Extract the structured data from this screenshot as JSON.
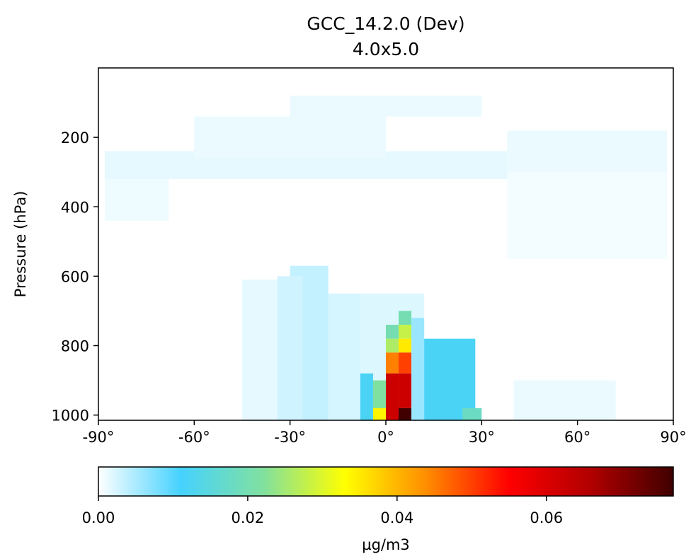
{
  "chart_data": {
    "type": "heatmap",
    "title": "GCC_14.2.0 (Dev)",
    "subtitle": "4.0x5.0",
    "xlabel": "",
    "ylabel": "Pressure (hPa)",
    "xlim": [
      -90,
      90
    ],
    "ylim": [
      1015,
      0
    ],
    "x_ticks": [
      "-90°",
      "-60°",
      "-30°",
      "0°",
      "30°",
      "60°",
      "90°"
    ],
    "x_tick_values": [
      -90,
      -60,
      -30,
      0,
      30,
      60,
      90
    ],
    "y_ticks": [
      "200",
      "400",
      "600",
      "800",
      "1000"
    ],
    "y_tick_values": [
      200,
      400,
      600,
      800,
      1000
    ],
    "colorbar": {
      "label": "µg/m3",
      "range": [
        0,
        0.077
      ],
      "ticks": [
        "0.00",
        "0.02",
        "0.04",
        "0.06"
      ],
      "tick_values": [
        0,
        0.02,
        0.04,
        0.06
      ],
      "colormap": [
        "#ffffff",
        "#46d2ff",
        "#80e0a0",
        "#ffff00",
        "#ff8c00",
        "#ff0000",
        "#b00000",
        "#400000"
      ]
    },
    "grid": false,
    "cells": [
      {
        "lat": [
          -88,
          40
        ],
        "p": [
          240,
          320
        ],
        "v": 0.0015
      },
      {
        "lat": [
          -88,
          -68
        ],
        "p": [
          320,
          440
        ],
        "v": 0.001
      },
      {
        "lat": [
          -60,
          0
        ],
        "p": [
          140,
          260
        ],
        "v": 0.0012
      },
      {
        "lat": [
          -30,
          30
        ],
        "p": [
          80,
          140
        ],
        "v": 0.0012
      },
      {
        "lat": [
          38,
          88
        ],
        "p": [
          180,
          300
        ],
        "v": 0.0012
      },
      {
        "lat": [
          38,
          88
        ],
        "p": [
          300,
          550
        ],
        "v": 0.0007
      },
      {
        "lat": [
          -45,
          -26
        ],
        "p": [
          610,
          1015
        ],
        "v": 0.0015
      },
      {
        "lat": [
          -30,
          -18
        ],
        "p": [
          570,
          1015
        ],
        "v": 0.0035
      },
      {
        "lat": [
          -34,
          -26
        ],
        "p": [
          600,
          1015
        ],
        "v": 0.0028
      },
      {
        "lat": [
          -18,
          -4
        ],
        "p": [
          650,
          1015
        ],
        "v": 0.0025
      },
      {
        "lat": [
          -8,
          12
        ],
        "p": [
          650,
          1015
        ],
        "v": 0.002
      },
      {
        "lat": [
          -8,
          -4
        ],
        "p": [
          880,
          1015
        ],
        "v": 0.012
      },
      {
        "lat": [
          -4,
          0
        ],
        "p": [
          900,
          1015
        ],
        "v": 0.022
      },
      {
        "lat": [
          -4,
          0
        ],
        "p": [
          980,
          1015
        ],
        "v": 0.034
      },
      {
        "lat": [
          0,
          4
        ],
        "p": [
          740,
          780
        ],
        "v": 0.02
      },
      {
        "lat": [
          0,
          4
        ],
        "p": [
          780,
          820
        ],
        "v": 0.026
      },
      {
        "lat": [
          0,
          4
        ],
        "p": [
          820,
          880
        ],
        "v": 0.045
      },
      {
        "lat": [
          0,
          4
        ],
        "p": [
          880,
          1015
        ],
        "v": 0.062
      },
      {
        "lat": [
          4,
          8
        ],
        "p": [
          700,
          740
        ],
        "v": 0.02
      },
      {
        "lat": [
          4,
          8
        ],
        "p": [
          740,
          780
        ],
        "v": 0.028
      },
      {
        "lat": [
          4,
          8
        ],
        "p": [
          780,
          820
        ],
        "v": 0.035
      },
      {
        "lat": [
          4,
          8
        ],
        "p": [
          820,
          880
        ],
        "v": 0.05
      },
      {
        "lat": [
          4,
          8
        ],
        "p": [
          880,
          980
        ],
        "v": 0.062
      },
      {
        "lat": [
          4,
          8
        ],
        "p": [
          980,
          1015
        ],
        "v": 0.077
      },
      {
        "lat": [
          8,
          12
        ],
        "p": [
          720,
          1015
        ],
        "v": 0.006
      },
      {
        "lat": [
          12,
          28
        ],
        "p": [
          780,
          1015
        ],
        "v": 0.012
      },
      {
        "lat": [
          24,
          30
        ],
        "p": [
          980,
          1015
        ],
        "v": 0.018
      },
      {
        "lat": [
          40,
          72
        ],
        "p": [
          900,
          1015
        ],
        "v": 0.0012
      }
    ]
  }
}
